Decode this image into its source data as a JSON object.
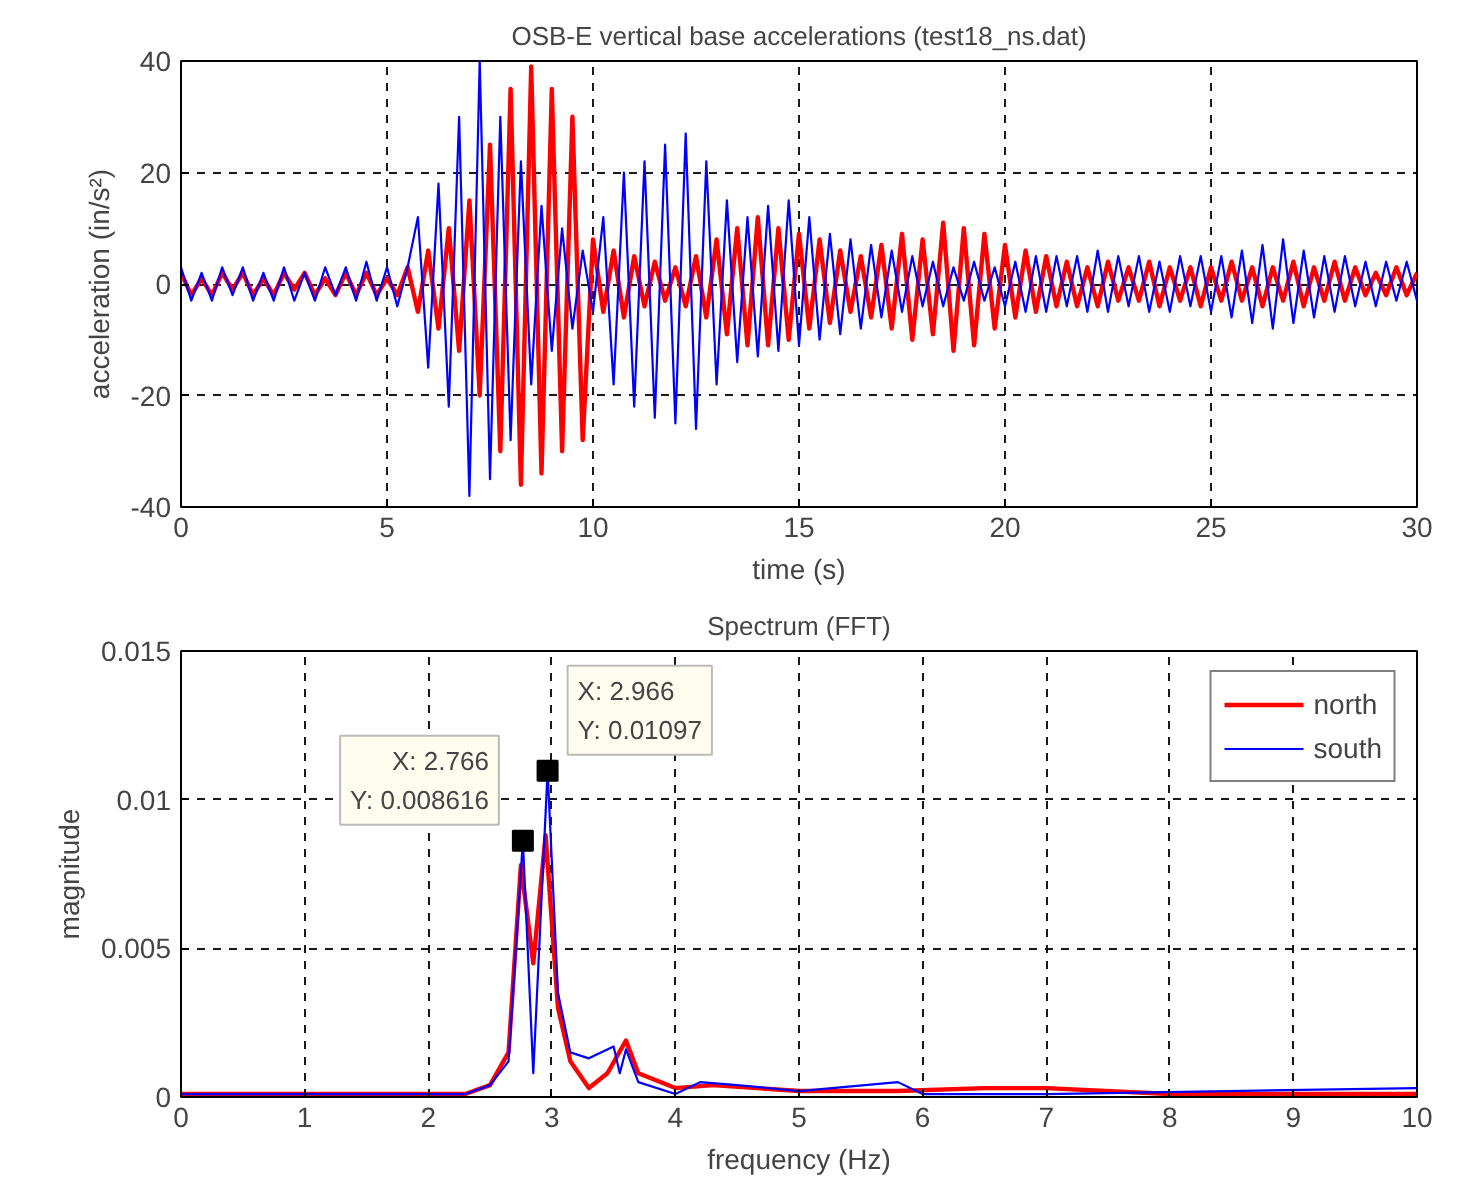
{
  "chart_data": [
    {
      "type": "line",
      "title": "OSB-E vertical base accelerations (test18_ns.dat)",
      "xlabel": "time (s)",
      "ylabel": "acceleration (in/s²)",
      "xlim": [
        0,
        30
      ],
      "ylim": [
        -40,
        40
      ],
      "xticks": [
        0,
        5,
        10,
        15,
        20,
        25,
        30
      ],
      "yticks": [
        -40,
        -20,
        0,
        20,
        40
      ],
      "grid": true,
      "legend": false,
      "x": [
        0,
        0.25,
        0.5,
        0.75,
        1,
        1.25,
        1.5,
        1.75,
        2,
        2.25,
        2.5,
        2.75,
        3,
        3.25,
        3.5,
        3.75,
        4,
        4.25,
        4.5,
        4.75,
        5,
        5.25,
        5.5,
        5.75,
        6,
        6.25,
        6.5,
        6.75,
        7,
        7.25,
        7.5,
        7.75,
        8,
        8.25,
        8.5,
        8.75,
        9,
        9.25,
        9.5,
        9.75,
        10,
        10.25,
        10.5,
        10.75,
        11,
        11.25,
        11.5,
        11.75,
        12,
        12.25,
        12.5,
        12.75,
        13,
        13.25,
        13.5,
        13.75,
        14,
        14.25,
        14.5,
        14.75,
        15,
        15.25,
        15.5,
        15.75,
        16,
        16.25,
        16.5,
        16.75,
        17,
        17.25,
        17.5,
        17.75,
        18,
        18.25,
        18.5,
        18.75,
        19,
        19.25,
        19.5,
        19.75,
        20,
        20.25,
        20.5,
        20.75,
        21,
        21.25,
        21.5,
        21.75,
        22,
        22.25,
        22.5,
        22.75,
        23,
        23.25,
        23.5,
        23.75,
        24,
        24.25,
        24.5,
        24.75,
        25,
        25.25,
        25.5,
        25.75,
        26,
        26.25,
        26.5,
        26.75,
        27,
        27.25,
        27.5,
        27.75,
        28,
        28.25,
        28.5,
        28.75,
        29,
        29.25,
        29.5,
        29.75,
        30
      ],
      "series": [
        {
          "color": "#ff0000",
          "values": [
            2,
            -2,
            1,
            -2,
            2,
            -1,
            2,
            -2,
            1,
            -2,
            2,
            -1,
            2,
            -2,
            1,
            -2,
            2,
            -2,
            2,
            -2,
            1,
            -2,
            3,
            -5,
            6,
            -8,
            10,
            -12,
            15,
            -20,
            25,
            -30,
            35,
            -36,
            39,
            -34,
            35,
            -30,
            30,
            -28,
            8,
            -5,
            6,
            -6,
            5,
            -4,
            4,
            -3,
            3,
            -4,
            5,
            -6,
            8,
            -9,
            10,
            -11,
            12,
            -11,
            10,
            -10,
            9,
            -8,
            8,
            -7,
            6,
            -5,
            5,
            -6,
            7,
            -8,
            9,
            -10,
            8,
            -9,
            11,
            -12,
            10,
            -11,
            9,
            -8,
            7,
            -6,
            6,
            -5,
            5,
            -4,
            4,
            -4,
            3,
            -4,
            4,
            -3,
            3,
            -3,
            4,
            -4,
            3,
            -3,
            3,
            -4,
            3,
            -3,
            4,
            -3,
            3,
            -4,
            3,
            -3,
            4,
            -4,
            3,
            -3,
            4,
            -3,
            3,
            -2,
            2,
            -2,
            3,
            -2,
            2
          ]
        },
        {
          "color": "#0000ff",
          "values": [
            3,
            -3,
            2,
            -3,
            3,
            -2,
            3,
            -3,
            2,
            -3,
            3,
            -3,
            2,
            -3,
            3,
            -2,
            3,
            -3,
            4,
            -3,
            3,
            -4,
            3,
            12,
            -15,
            18,
            -22,
            30,
            -38,
            40,
            -35,
            30,
            -28,
            22,
            -18,
            14,
            -12,
            10,
            -8,
            6,
            -5,
            12,
            -18,
            20,
            -22,
            22,
            -24,
            25,
            -25,
            27,
            -26,
            22,
            -18,
            15,
            -14,
            12,
            -13,
            14,
            -12,
            15,
            -11,
            12,
            -10,
            9,
            -9,
            8,
            -8,
            7,
            -6,
            6,
            -5,
            5,
            -4,
            4,
            -4,
            3,
            -3,
            4,
            -3,
            3,
            -4,
            4,
            -5,
            5,
            -5,
            5,
            -4,
            5,
            -5,
            6,
            -5,
            5,
            -4,
            5,
            -5,
            4,
            -5,
            5,
            -4,
            5,
            -5,
            5,
            -6,
            6,
            -7,
            7,
            -8,
            8,
            -7,
            6,
            -6,
            5,
            -5,
            5,
            -4,
            4,
            -4,
            4,
            -3,
            4,
            -3
          ]
        }
      ]
    },
    {
      "type": "line",
      "title": "Spectrum (FFT)",
      "xlabel": "frequency (Hz)",
      "ylabel": "magnitude",
      "xlim": [
        0,
        10
      ],
      "ylim": [
        0,
        0.015
      ],
      "xticks": [
        0,
        1,
        2,
        3,
        4,
        5,
        6,
        7,
        8,
        9,
        10
      ],
      "yticks": [
        0,
        0.005,
        0.01,
        0.015
      ],
      "grid": true,
      "legend": "top right",
      "series": [
        {
          "name": "north",
          "color": "#ff0000",
          "x": [
            0,
            2.3,
            2.5,
            2.65,
            2.75,
            2.85,
            2.95,
            3.05,
            3.15,
            3.3,
            3.45,
            3.6,
            3.7,
            4.0,
            4.3,
            5.0,
            5.8,
            6.5,
            7.0,
            8.0,
            10
          ],
          "values": [
            0.0001,
            0.0001,
            0.0004,
            0.0015,
            0.0078,
            0.0045,
            0.0088,
            0.003,
            0.0012,
            0.0003,
            0.0008,
            0.0019,
            0.0008,
            0.0003,
            0.0004,
            0.0002,
            0.0002,
            0.0003,
            0.0003,
            0.0001,
            0.0001
          ]
        },
        {
          "name": "south",
          "color": "#0000ff",
          "x": [
            0,
            2.3,
            2.5,
            2.65,
            2.766,
            2.85,
            2.966,
            3.05,
            3.15,
            3.3,
            3.5,
            3.55,
            3.6,
            3.7,
            4.0,
            4.2,
            4.5,
            5.0,
            5.8,
            6.0,
            7.0,
            10
          ],
          "values": [
            0.0001,
            0.0001,
            0.0004,
            0.0012,
            0.008616,
            0.0008,
            0.01097,
            0.0035,
            0.0015,
            0.0013,
            0.0017,
            0.0008,
            0.0016,
            0.0005,
            0.0001,
            0.0005,
            0.0004,
            0.0002,
            0.0005,
            0.0001,
            0.0001,
            0.0003
          ]
        }
      ],
      "annotations": [
        {
          "text": "X: 2.766\nY: 0.008616",
          "x": 2.766,
          "y": 0.008616
        },
        {
          "text": "X: 2.966\nY: 0.01097",
          "x": 2.966,
          "y": 0.01097
        }
      ]
    }
  ]
}
